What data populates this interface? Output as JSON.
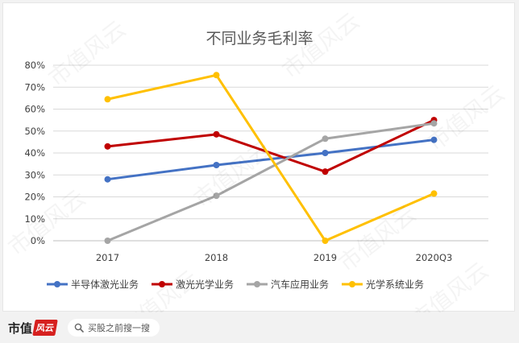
{
  "chart_data": {
    "type": "line",
    "title": "不同业务毛利率",
    "categories": [
      "2017",
      "2018",
      "2019",
      "2020Q3"
    ],
    "y_ticks": [
      "0%",
      "10%",
      "20%",
      "30%",
      "40%",
      "50%",
      "60%",
      "70%",
      "80%"
    ],
    "ylim": [
      0,
      80
    ],
    "grid": true,
    "legend_position": "bottom",
    "series": [
      {
        "name": "半导体激光业务",
        "color": "#4472c4",
        "values": [
          28,
          34.5,
          40,
          46
        ]
      },
      {
        "name": "激光光学业务",
        "color": "#c00000",
        "values": [
          43,
          48.5,
          31.5,
          55
        ]
      },
      {
        "name": "汽车应用业务",
        "color": "#a5a5a5",
        "values": [
          0,
          20.5,
          46.5,
          53.5
        ]
      },
      {
        "name": "光学系统业务",
        "color": "#ffc000",
        "values": [
          64.5,
          75.5,
          0,
          21.5
        ]
      }
    ]
  },
  "watermark": "市值风云",
  "footer": {
    "brand": "市值",
    "brand_badge": "风云",
    "search_text": "买股之前搜一搜"
  }
}
